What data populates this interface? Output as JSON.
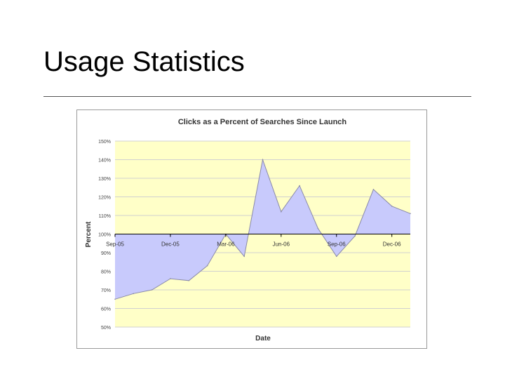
{
  "slide": {
    "title": "Usage Statistics"
  },
  "chart_data": {
    "type": "area",
    "title": "Clicks as a Percent of Searches Since Launch",
    "xlabel": "Date",
    "ylabel": "Percent",
    "ylim": [
      50,
      150
    ],
    "y_ticks": [
      "50%",
      "60%",
      "70%",
      "80%",
      "90%",
      "100%",
      "110%",
      "120%",
      "130%",
      "140%",
      "150%"
    ],
    "x_tick_labels": [
      "Sep-05",
      "Dec-05",
      "Mar-06",
      "Jun-06",
      "Sep-06",
      "Dec-06"
    ],
    "baseline": 100,
    "grid": true,
    "colors": {
      "plot_background": "#ffffc8",
      "area_fill": "#c8cafc",
      "area_line": "#8a8aa8",
      "gridline": "#d0d0d0"
    },
    "series": [
      {
        "x": [
          "Sep-05",
          "Oct-05",
          "Nov-05",
          "Dec-05",
          "Jan-06",
          "Feb-06",
          "Mar-06",
          "Apr-06",
          "May-06",
          "Jun-06",
          "Jul-06",
          "Aug-06",
          "Sep-06",
          "Oct-06",
          "Nov-06",
          "Dec-06",
          "Jan-07"
        ],
        "values": [
          65,
          68,
          70,
          76,
          75,
          83,
          100,
          88,
          140,
          112,
          126,
          103,
          88,
          99,
          124,
          115,
          111
        ]
      }
    ]
  }
}
